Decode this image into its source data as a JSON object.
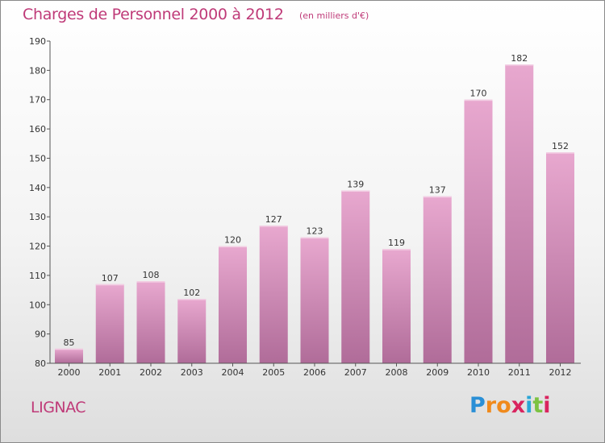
{
  "header": {
    "title": "Charges de Personnel 2000 à 2012",
    "subtitle": "(en milliers d'€)"
  },
  "footer": {
    "commune": "LIGNAC",
    "logo": {
      "text": "Proxiti",
      "letters": [
        {
          "char": "P",
          "color": "#2a8fd6"
        },
        {
          "char": "r",
          "color": "#f08a1c"
        },
        {
          "char": "o",
          "color": "#f08a1c"
        },
        {
          "char": "x",
          "color": "#d9245f"
        },
        {
          "char": "i",
          "color": "#2aa6d6"
        },
        {
          "char": "t",
          "color": "#7cc242"
        },
        {
          "char": "i",
          "color": "#d9245f"
        }
      ]
    }
  },
  "colors": {
    "accent": "#bf3a78",
    "bar_top": "#e8a8cf",
    "bar_bottom": "#b06c99"
  },
  "chart_data": {
    "type": "bar",
    "title": "Charges de Personnel 2000 à 2012",
    "subtitle": "(en milliers d'€)",
    "xlabel": "",
    "ylabel": "",
    "categories": [
      "2000",
      "2001",
      "2002",
      "2003",
      "2004",
      "2005",
      "2006",
      "2007",
      "2008",
      "2009",
      "2010",
      "2011",
      "2012"
    ],
    "values": [
      85,
      107,
      108,
      102,
      120,
      127,
      123,
      139,
      119,
      137,
      170,
      182,
      152
    ],
    "ylim": [
      80,
      190
    ],
    "yticks": [
      80,
      90,
      100,
      110,
      120,
      130,
      140,
      150,
      160,
      170,
      180,
      190
    ],
    "grid": false,
    "legend": "none"
  }
}
